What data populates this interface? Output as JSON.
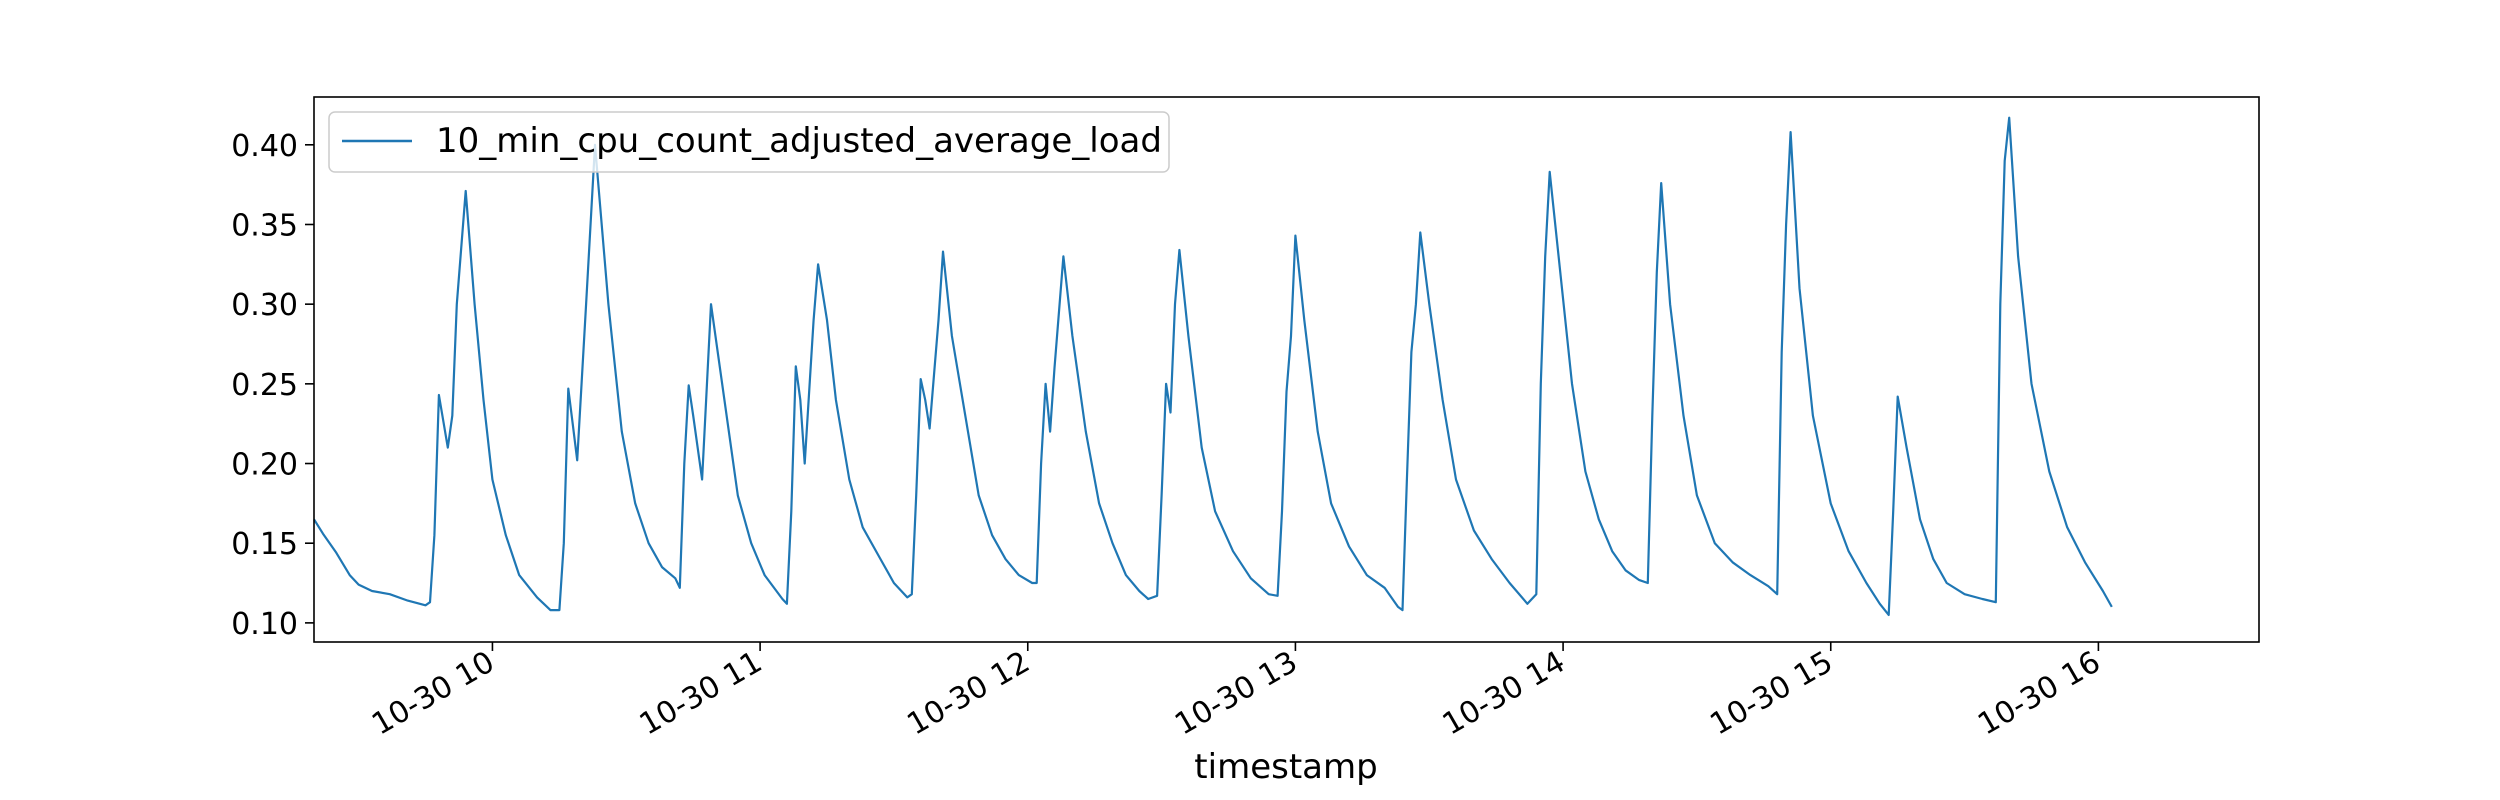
{
  "chart_data": {
    "type": "line",
    "title": "",
    "xlabel": "timestamp",
    "ylabel": "",
    "x_tick_labels": [
      "10-30 10",
      "10-30 11",
      "10-30 12",
      "10-30 13",
      "10-30 14",
      "10-30 15",
      "10-30 16"
    ],
    "y_tick_labels": [
      "0.10",
      "0.15",
      "0.20",
      "0.25",
      "0.30",
      "0.35",
      "0.40"
    ],
    "y_ticks": [
      0.1,
      0.15,
      0.2,
      0.25,
      0.3,
      0.35,
      0.4
    ],
    "ylim": [
      0.088,
      0.43
    ],
    "xlim": [
      "2023-10-30 09:20",
      "2023-10-30 16:36"
    ],
    "grid": false,
    "legend": "upper-left",
    "colors": {
      "series": "#1f77b4",
      "axes": "#000000",
      "legend_border": "#cccccc"
    },
    "series": [
      {
        "name": "10_min_cpu_count_adjusted_average_load",
        "points": [
          [
            "09:20",
            0.165
          ],
          [
            "09:22",
            0.156
          ],
          [
            "09:25",
            0.144
          ],
          [
            "09:28",
            0.13
          ],
          [
            "09:30",
            0.124
          ],
          [
            "09:33",
            0.12
          ],
          [
            "09:37",
            0.118
          ],
          [
            "09:41",
            0.114
          ],
          [
            "09:45",
            0.111
          ],
          [
            "09:46",
            0.113
          ],
          [
            "09:47",
            0.155
          ],
          [
            "09:48",
            0.243
          ],
          [
            "09:50",
            0.21
          ],
          [
            "09:51",
            0.23
          ],
          [
            "09:52",
            0.3
          ],
          [
            "09:54",
            0.371
          ],
          [
            "09:56",
            0.3
          ],
          [
            "09:58",
            0.24
          ],
          [
            "10:00",
            0.19
          ],
          [
            "10:03",
            0.155
          ],
          [
            "10:06",
            0.13
          ],
          [
            "10:10",
            0.116
          ],
          [
            "10:13",
            0.108
          ],
          [
            "10:15",
            0.108
          ],
          [
            "10:16",
            0.15
          ],
          [
            "10:17",
            0.247
          ],
          [
            "10:18",
            0.225
          ],
          [
            "10:19",
            0.202
          ],
          [
            "10:21",
            0.3
          ],
          [
            "10:23",
            0.4
          ],
          [
            "10:26",
            0.3
          ],
          [
            "10:29",
            0.22
          ],
          [
            "10:32",
            0.175
          ],
          [
            "10:35",
            0.15
          ],
          [
            "10:38",
            0.135
          ],
          [
            "10:41",
            0.128
          ],
          [
            "10:42",
            0.122
          ],
          [
            "10:43",
            0.2
          ],
          [
            "10:44",
            0.249
          ],
          [
            "10:45",
            0.23
          ],
          [
            "10:47",
            0.19
          ],
          [
            "10:49",
            0.3
          ],
          [
            "10:52",
            0.24
          ],
          [
            "10:55",
            0.18
          ],
          [
            "10:58",
            0.15
          ],
          [
            "11:01",
            0.13
          ],
          [
            "11:05",
            0.115
          ],
          [
            "11:06",
            0.112
          ],
          [
            "11:07",
            0.17
          ],
          [
            "11:08",
            0.261
          ],
          [
            "11:09",
            0.24
          ],
          [
            "11:10",
            0.2
          ],
          [
            "11:12",
            0.29
          ],
          [
            "11:13",
            0.325
          ],
          [
            "11:15",
            0.29
          ],
          [
            "11:17",
            0.24
          ],
          [
            "11:20",
            0.19
          ],
          [
            "11:23",
            0.16
          ],
          [
            "11:27",
            0.14
          ],
          [
            "11:30",
            0.125
          ],
          [
            "11:33",
            0.116
          ],
          [
            "11:34",
            0.118
          ],
          [
            "11:35",
            0.18
          ],
          [
            "11:36",
            0.253
          ],
          [
            "11:37",
            0.24
          ],
          [
            "11:38",
            0.222
          ],
          [
            "11:40",
            0.29
          ],
          [
            "11:41",
            0.333
          ],
          [
            "11:43",
            0.28
          ],
          [
            "11:46",
            0.23
          ],
          [
            "11:49",
            0.18
          ],
          [
            "11:52",
            0.155
          ],
          [
            "11:55",
            0.14
          ],
          [
            "11:58",
            0.13
          ],
          [
            "12:01",
            0.125
          ],
          [
            "12:02",
            0.125
          ],
          [
            "12:03",
            0.2
          ],
          [
            "12:04",
            0.25
          ],
          [
            "12:05",
            0.22
          ],
          [
            "12:06",
            0.26
          ],
          [
            "12:08",
            0.33
          ],
          [
            "12:10",
            0.28
          ],
          [
            "12:13",
            0.22
          ],
          [
            "12:16",
            0.175
          ],
          [
            "12:19",
            0.15
          ],
          [
            "12:22",
            0.13
          ],
          [
            "12:25",
            0.12
          ],
          [
            "12:27",
            0.115
          ],
          [
            "12:29",
            0.117
          ],
          [
            "12:30",
            0.18
          ],
          [
            "12:31",
            0.25
          ],
          [
            "12:32",
            0.232
          ],
          [
            "12:33",
            0.3
          ],
          [
            "12:34",
            0.334
          ],
          [
            "12:36",
            0.28
          ],
          [
            "12:39",
            0.21
          ],
          [
            "12:42",
            0.17
          ],
          [
            "12:46",
            0.145
          ],
          [
            "12:50",
            0.128
          ],
          [
            "12:54",
            0.118
          ],
          [
            "12:56",
            0.117
          ],
          [
            "12:57",
            0.17
          ],
          [
            "12:58",
            0.245
          ],
          [
            "12:59",
            0.28
          ],
          [
            "13:00",
            0.343
          ],
          [
            "13:02",
            0.29
          ],
          [
            "13:05",
            0.22
          ],
          [
            "13:08",
            0.175
          ],
          [
            "13:12",
            0.148
          ],
          [
            "13:16",
            0.13
          ],
          [
            "13:20",
            0.122
          ],
          [
            "13:23",
            0.11
          ],
          [
            "13:24",
            0.108
          ],
          [
            "13:25",
            0.19
          ],
          [
            "13:26",
            0.27
          ],
          [
            "13:27",
            0.3
          ],
          [
            "13:28",
            0.345
          ],
          [
            "13:30",
            0.3
          ],
          [
            "13:33",
            0.24
          ],
          [
            "13:36",
            0.19
          ],
          [
            "13:40",
            0.158
          ],
          [
            "13:44",
            0.14
          ],
          [
            "13:48",
            0.125
          ],
          [
            "13:52",
            0.112
          ],
          [
            "13:54",
            0.118
          ],
          [
            "13:55",
            0.25
          ],
          [
            "13:56",
            0.33
          ],
          [
            "13:57",
            0.383
          ],
          [
            "13:59",
            0.33
          ],
          [
            "14:02",
            0.25
          ],
          [
            "14:05",
            0.195
          ],
          [
            "14:08",
            0.165
          ],
          [
            "14:11",
            0.145
          ],
          [
            "14:14",
            0.133
          ],
          [
            "14:17",
            0.127
          ],
          [
            "14:19",
            0.125
          ],
          [
            "14:20",
            0.23
          ],
          [
            "14:21",
            0.32
          ],
          [
            "14:22",
            0.376
          ],
          [
            "14:24",
            0.3
          ],
          [
            "14:27",
            0.23
          ],
          [
            "14:30",
            0.18
          ],
          [
            "14:34",
            0.15
          ],
          [
            "14:38",
            0.138
          ],
          [
            "14:42",
            0.13
          ],
          [
            "14:46",
            0.123
          ],
          [
            "14:48",
            0.118
          ],
          [
            "14:49",
            0.27
          ],
          [
            "14:50",
            0.35
          ],
          [
            "14:51",
            0.408
          ],
          [
            "14:53",
            0.31
          ],
          [
            "14:56",
            0.23
          ],
          [
            "15:00",
            0.175
          ],
          [
            "15:04",
            0.145
          ],
          [
            "15:08",
            0.125
          ],
          [
            "15:11",
            0.112
          ],
          [
            "15:13",
            0.105
          ],
          [
            "15:14",
            0.17
          ],
          [
            "15:15",
            0.242
          ],
          [
            "15:17",
            0.21
          ],
          [
            "15:20",
            0.165
          ],
          [
            "15:23",
            0.14
          ],
          [
            "15:26",
            0.125
          ],
          [
            "15:30",
            0.118
          ],
          [
            "15:34",
            0.115
          ],
          [
            "15:37",
            0.113
          ],
          [
            "15:38",
            0.3
          ],
          [
            "15:39",
            0.39
          ],
          [
            "15:40",
            0.417
          ],
          [
            "15:42",
            0.33
          ],
          [
            "15:45",
            0.25
          ],
          [
            "15:49",
            0.195
          ],
          [
            "15:53",
            0.16
          ],
          [
            "15:57",
            0.138
          ],
          [
            "16:01",
            0.12
          ],
          [
            "16:03",
            0.11
          ]
        ]
      }
    ]
  }
}
